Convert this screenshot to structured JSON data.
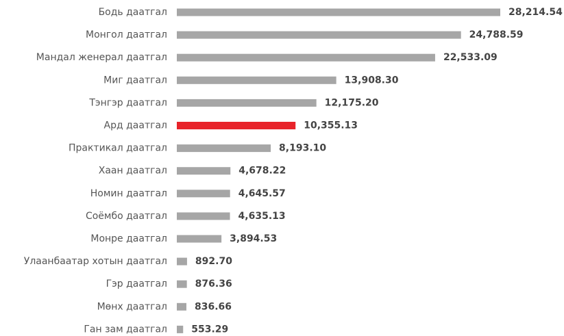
{
  "chart_data": {
    "type": "bar",
    "categories": [
      "Бодь даатгал",
      "Монгол даатгал",
      "Мандал женерал даатгал",
      "Миг даатгал",
      "Тэнгэр даатгал",
      "Ард даатгал",
      "Практикал даатгал",
      "Хаан даатгал",
      "Номин даатгал",
      "Соёмбо даатгал",
      "Монре даатгал",
      "Улаанбаатар хотын даатгал",
      "Гэр даатгал",
      "Мөнх даатгал",
      "Ган зам даатгал"
    ],
    "values": [
      28214.54,
      24788.59,
      22533.09,
      13908.3,
      12175.2,
      10355.13,
      8193.1,
      4678.22,
      4645.57,
      4635.13,
      3894.53,
      892.7,
      876.36,
      836.66,
      553.29
    ],
    "value_labels": [
      "28,214.54",
      "24,788.59",
      "22,533.09",
      "13,908.30",
      "12,175.20",
      "10,355.13",
      "8,193.10",
      "4,678.22",
      "4,645.57",
      "4,635.13",
      "3,894.53",
      "892.70",
      "876.36",
      "836.66",
      "553.29"
    ],
    "colors": [
      "#a6a6a6",
      "#a6a6a6",
      "#a6a6a6",
      "#a6a6a6",
      "#a6a6a6",
      "#e8232a",
      "#a6a6a6",
      "#a6a6a6",
      "#a6a6a6",
      "#a6a6a6",
      "#a6a6a6",
      "#a6a6a6",
      "#a6a6a6",
      "#a6a6a6",
      "#a6a6a6"
    ]
  }
}
